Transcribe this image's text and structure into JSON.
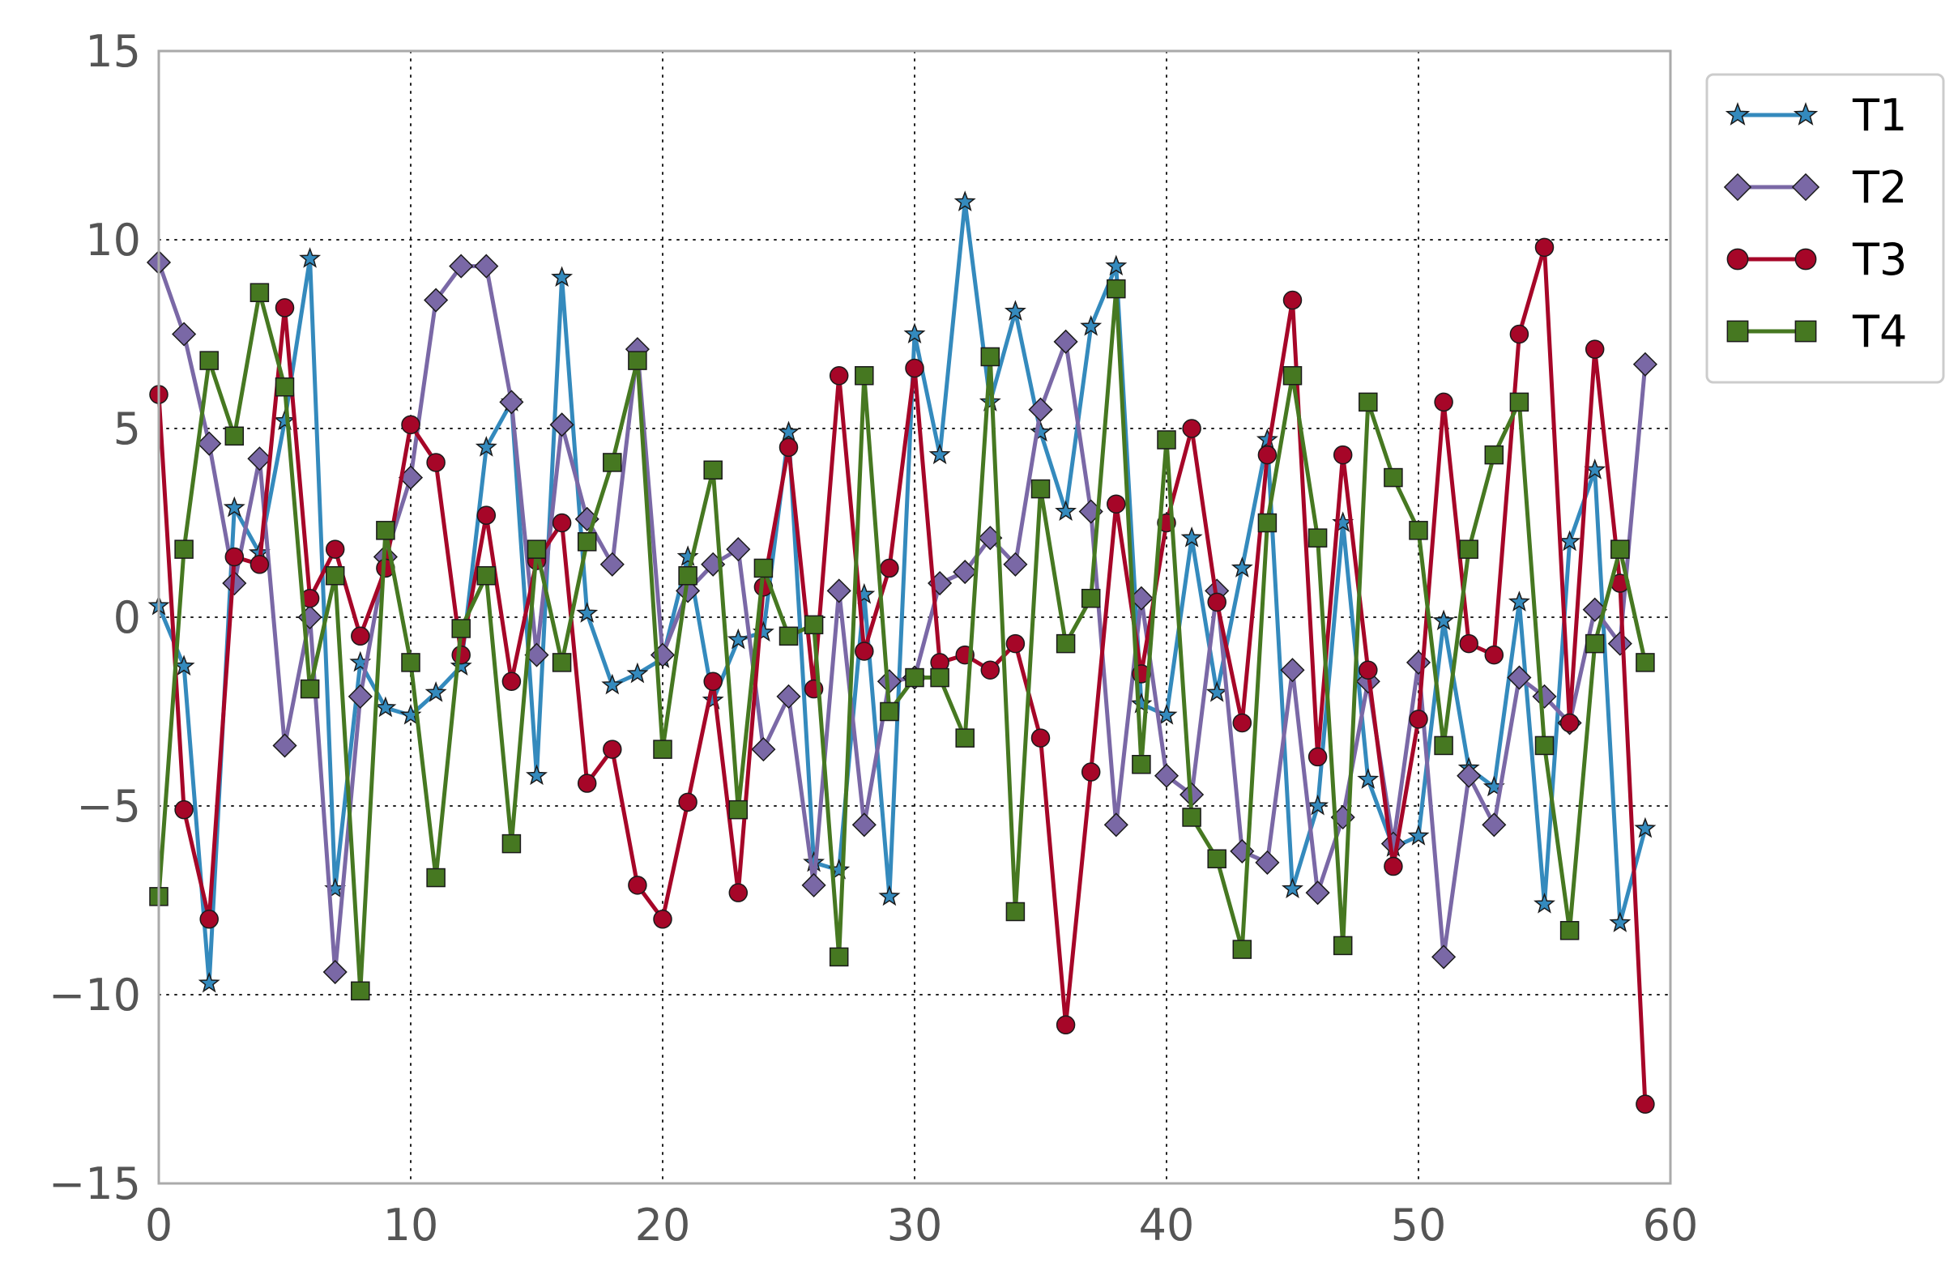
{
  "chart_data": {
    "type": "line",
    "title": "",
    "xlabel": "",
    "ylabel": "",
    "xlim": [
      0,
      60
    ],
    "ylim": [
      -15,
      15
    ],
    "xticks": [
      0,
      10,
      20,
      30,
      40,
      50,
      60
    ],
    "xtick_labels": [
      "0",
      "10",
      "20",
      "30",
      "40",
      "50",
      "60"
    ],
    "yticks": [
      15,
      10,
      5,
      0,
      -5,
      -10,
      -15
    ],
    "ytick_labels": [
      "15",
      "10",
      "5",
      "0",
      "−5",
      "−10",
      "−15"
    ],
    "grid": true,
    "legend_position": "outside-top-right",
    "series": [
      {
        "name": "T1",
        "color": "#348ABD",
        "marker": "star",
        "values": [
          0.3,
          -1.3,
          -9.7,
          2.9,
          1.7,
          5.2,
          9.5,
          -7.2,
          -1.2,
          -2.4,
          -2.6,
          -2.0,
          -1.3,
          4.5,
          5.7,
          -4.2,
          9.0,
          0.1,
          -1.8,
          -1.5,
          -1.1,
          1.6,
          -2.2,
          -0.6,
          -0.4,
          4.9,
          -6.5,
          -6.7,
          0.6,
          -7.4,
          7.5,
          4.3,
          11.0,
          5.7,
          8.1,
          4.9,
          2.8,
          7.7,
          9.3,
          -2.3,
          -2.6,
          2.1,
          -2.0,
          1.3,
          4.7,
          -7.2,
          -5.0,
          2.5,
          -4.3,
          -6.1,
          -5.8,
          -0.1,
          -4.0,
          -4.5,
          0.4,
          -7.6,
          2.0,
          3.9,
          -8.1,
          -5.6
        ]
      },
      {
        "name": "T2",
        "color": "#7A68A6",
        "marker": "diamond",
        "values": [
          9.4,
          7.5,
          4.6,
          0.9,
          4.2,
          -3.4,
          0.0,
          -9.4,
          -2.1,
          1.6,
          3.7,
          8.4,
          9.3,
          9.3,
          5.7,
          -1.0,
          5.1,
          2.6,
          1.4,
          7.1,
          -1.0,
          0.7,
          1.4,
          1.8,
          -3.5,
          -2.1,
          -7.1,
          0.7,
          -5.5,
          -1.7,
          -1.6,
          0.9,
          1.2,
          2.1,
          1.4,
          5.5,
          7.3,
          2.8,
          -5.5,
          0.5,
          -4.2,
          -4.7,
          0.7,
          -6.2,
          -6.5,
          -1.4,
          -7.3,
          -5.3,
          -1.7,
          -6.0,
          -1.2,
          -9.0,
          -4.2,
          -5.5,
          -1.6,
          -2.1,
          -2.8,
          0.2,
          -0.7,
          6.7
        ]
      },
      {
        "name": "T3",
        "color": "#A60628",
        "marker": "circle",
        "values": [
          5.9,
          -5.1,
          -8.0,
          1.6,
          1.4,
          8.2,
          0.5,
          1.8,
          -0.5,
          1.3,
          5.1,
          4.1,
          -1.0,
          2.7,
          -1.7,
          1.5,
          2.5,
          -4.4,
          -3.5,
          -7.1,
          -8.0,
          -4.9,
          -1.7,
          -7.3,
          0.8,
          4.5,
          -1.9,
          6.4,
          -0.9,
          1.3,
          6.6,
          -1.2,
          -1.0,
          -1.4,
          -0.7,
          -3.2,
          -10.8,
          -4.1,
          3.0,
          -1.5,
          2.5,
          5.0,
          0.4,
          -2.8,
          4.3,
          8.4,
          -3.7,
          4.3,
          -1.4,
          -6.6,
          -2.7,
          5.7,
          -0.7,
          -1.0,
          7.5,
          9.8,
          -2.8,
          7.1,
          0.9,
          -12.9
        ]
      },
      {
        "name": "T4",
        "color": "#467821",
        "marker": "square",
        "values": [
          -7.4,
          1.8,
          6.8,
          4.8,
          8.6,
          6.1,
          -1.9,
          1.1,
          -9.9,
          2.3,
          -1.2,
          -6.9,
          -0.3,
          1.1,
          -6.0,
          1.8,
          -1.2,
          2.0,
          4.1,
          6.8,
          -3.5,
          1.1,
          3.9,
          -5.1,
          1.3,
          -0.5,
          -0.2,
          -9.0,
          6.4,
          -2.5,
          -1.6,
          -1.6,
          -3.2,
          6.9,
          -7.8,
          3.4,
          -0.7,
          0.5,
          8.7,
          -3.9,
          4.7,
          -5.3,
          -6.4,
          -8.8,
          2.5,
          6.4,
          2.1,
          -8.7,
          5.7,
          3.7,
          2.3,
          -3.4,
          1.8,
          4.3,
          5.7,
          -3.4,
          -8.3,
          -0.7,
          1.8,
          -1.2
        ]
      }
    ]
  }
}
